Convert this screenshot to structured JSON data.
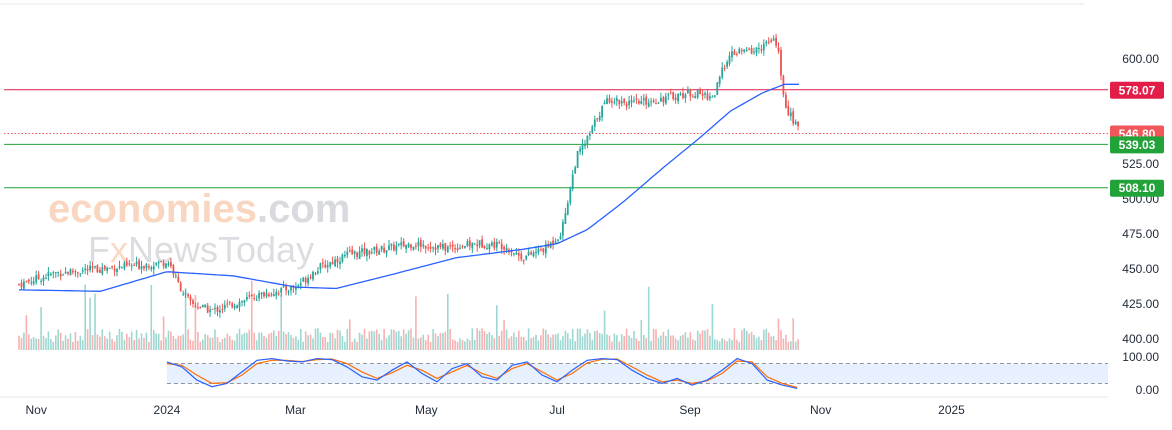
{
  "watermark": {
    "line1_part1": "economies",
    "line1_part2": ".com",
    "line2_part1": "F",
    "line2_part2": "x",
    "line2_part3": "NewsToday"
  },
  "colors": {
    "up": "#26a69a",
    "down": "#ef5350",
    "ma": "#2962ff",
    "resistance": "#e11d48",
    "support": "#22a33a",
    "price_tag": "#f0565a",
    "stoch_k": "#2962ff",
    "stoch_d": "#ff6d00",
    "band": "#dbeafe"
  },
  "chart_data": {
    "type": "candlestick",
    "title": "",
    "xlabel": "",
    "ylabel": "",
    "ylim": [
      392,
      628
    ],
    "y_ticks": [
      "400.00",
      "425.00",
      "450.00",
      "475.00",
      "500.00",
      "525.00",
      "600.00"
    ],
    "x_ticks": [
      "Nov",
      "2024",
      "Mar",
      "May",
      "Jul",
      "Sep",
      "Nov",
      "2025"
    ],
    "levels": [
      {
        "label": "578.07",
        "value": 578.07,
        "kind": "resistance"
      },
      {
        "label": "546.80",
        "value": 546.8,
        "kind": "last-price"
      },
      {
        "label": "539.03",
        "value": 539.03,
        "kind": "support"
      },
      {
        "label": "508.10",
        "value": 508.1,
        "kind": "support"
      }
    ],
    "price_path": {
      "dates": [
        "2023-10-24",
        "2023-11-10",
        "2023-11-30",
        "2023-12-15",
        "2024-01-02",
        "2024-01-06",
        "2024-01-12",
        "2024-01-22",
        "2024-02-05",
        "2024-02-15",
        "2024-03-01",
        "2024-03-11",
        "2024-03-25",
        "2024-04-10",
        "2024-04-25",
        "2024-05-10",
        "2024-05-25",
        "2024-06-06",
        "2024-06-15",
        "2024-06-26",
        "2024-07-03",
        "2024-07-10",
        "2024-07-16",
        "2024-07-20",
        "2024-07-25",
        "2024-08-05",
        "2024-08-20",
        "2024-09-01",
        "2024-09-12",
        "2024-09-18",
        "2024-09-23",
        "2024-10-01",
        "2024-10-08",
        "2024-10-12",
        "2024-10-14",
        "2024-10-17",
        "2024-10-22"
      ],
      "close": [
        439,
        447,
        450,
        452,
        455,
        440,
        425,
        420,
        427,
        432,
        437,
        450,
        460,
        464,
        468,
        465,
        468,
        467,
        458,
        465,
        476,
        530,
        545,
        560,
        572,
        568,
        572,
        576,
        573,
        600,
        605,
        606,
        612,
        612,
        575,
        562,
        548
      ]
    },
    "ma": {
      "dates": [
        "2023-10-24",
        "2023-12-01",
        "2024-01-01",
        "2024-02-01",
        "2024-03-01",
        "2024-03-20",
        "2024-04-15",
        "2024-05-15",
        "2024-06-15",
        "2024-07-01",
        "2024-07-15",
        "2024-08-01",
        "2024-08-20",
        "2024-09-05",
        "2024-09-20",
        "2024-10-05",
        "2024-10-15",
        "2024-10-22"
      ],
      "values": [
        435,
        434,
        448,
        445,
        437,
        436,
        446,
        458,
        464,
        468,
        478,
        498,
        523,
        543,
        563,
        576,
        582,
        582
      ]
    },
    "stoch": {
      "ylim": [
        0,
        100
      ],
      "ticks": [
        "100.00",
        "0.00"
      ],
      "band": [
        20,
        80
      ],
      "dates": [
        "2024-01-01",
        "2024-01-08",
        "2024-01-15",
        "2024-01-22",
        "2024-01-29",
        "2024-02-05",
        "2024-02-12",
        "2024-02-19",
        "2024-02-26",
        "2024-03-04",
        "2024-03-11",
        "2024-03-18",
        "2024-03-25",
        "2024-04-01",
        "2024-04-08",
        "2024-04-15",
        "2024-04-22",
        "2024-04-29",
        "2024-05-06",
        "2024-05-13",
        "2024-05-20",
        "2024-05-27",
        "2024-06-03",
        "2024-06-10",
        "2024-06-17",
        "2024-06-24",
        "2024-07-01",
        "2024-07-08",
        "2024-07-15",
        "2024-07-22",
        "2024-07-29",
        "2024-08-05",
        "2024-08-12",
        "2024-08-19",
        "2024-08-26",
        "2024-09-02",
        "2024-09-09",
        "2024-09-16",
        "2024-09-23",
        "2024-09-30",
        "2024-10-07",
        "2024-10-14",
        "2024-10-21"
      ],
      "k": [
        85,
        70,
        30,
        10,
        20,
        55,
        90,
        95,
        88,
        85,
        95,
        92,
        70,
        40,
        30,
        60,
        85,
        50,
        25,
        65,
        80,
        40,
        30,
        75,
        85,
        45,
        25,
        60,
        90,
        95,
        92,
        60,
        35,
        20,
        35,
        15,
        30,
        60,
        95,
        80,
        30,
        15,
        5
      ],
      "d": [
        80,
        75,
        45,
        20,
        22,
        45,
        80,
        90,
        90,
        86,
        92,
        94,
        80,
        55,
        35,
        52,
        75,
        60,
        35,
        55,
        75,
        50,
        35,
        65,
        80,
        55,
        30,
        50,
        82,
        93,
        94,
        70,
        45,
        25,
        30,
        20,
        28,
        50,
        88,
        85,
        40,
        20,
        8
      ]
    }
  }
}
